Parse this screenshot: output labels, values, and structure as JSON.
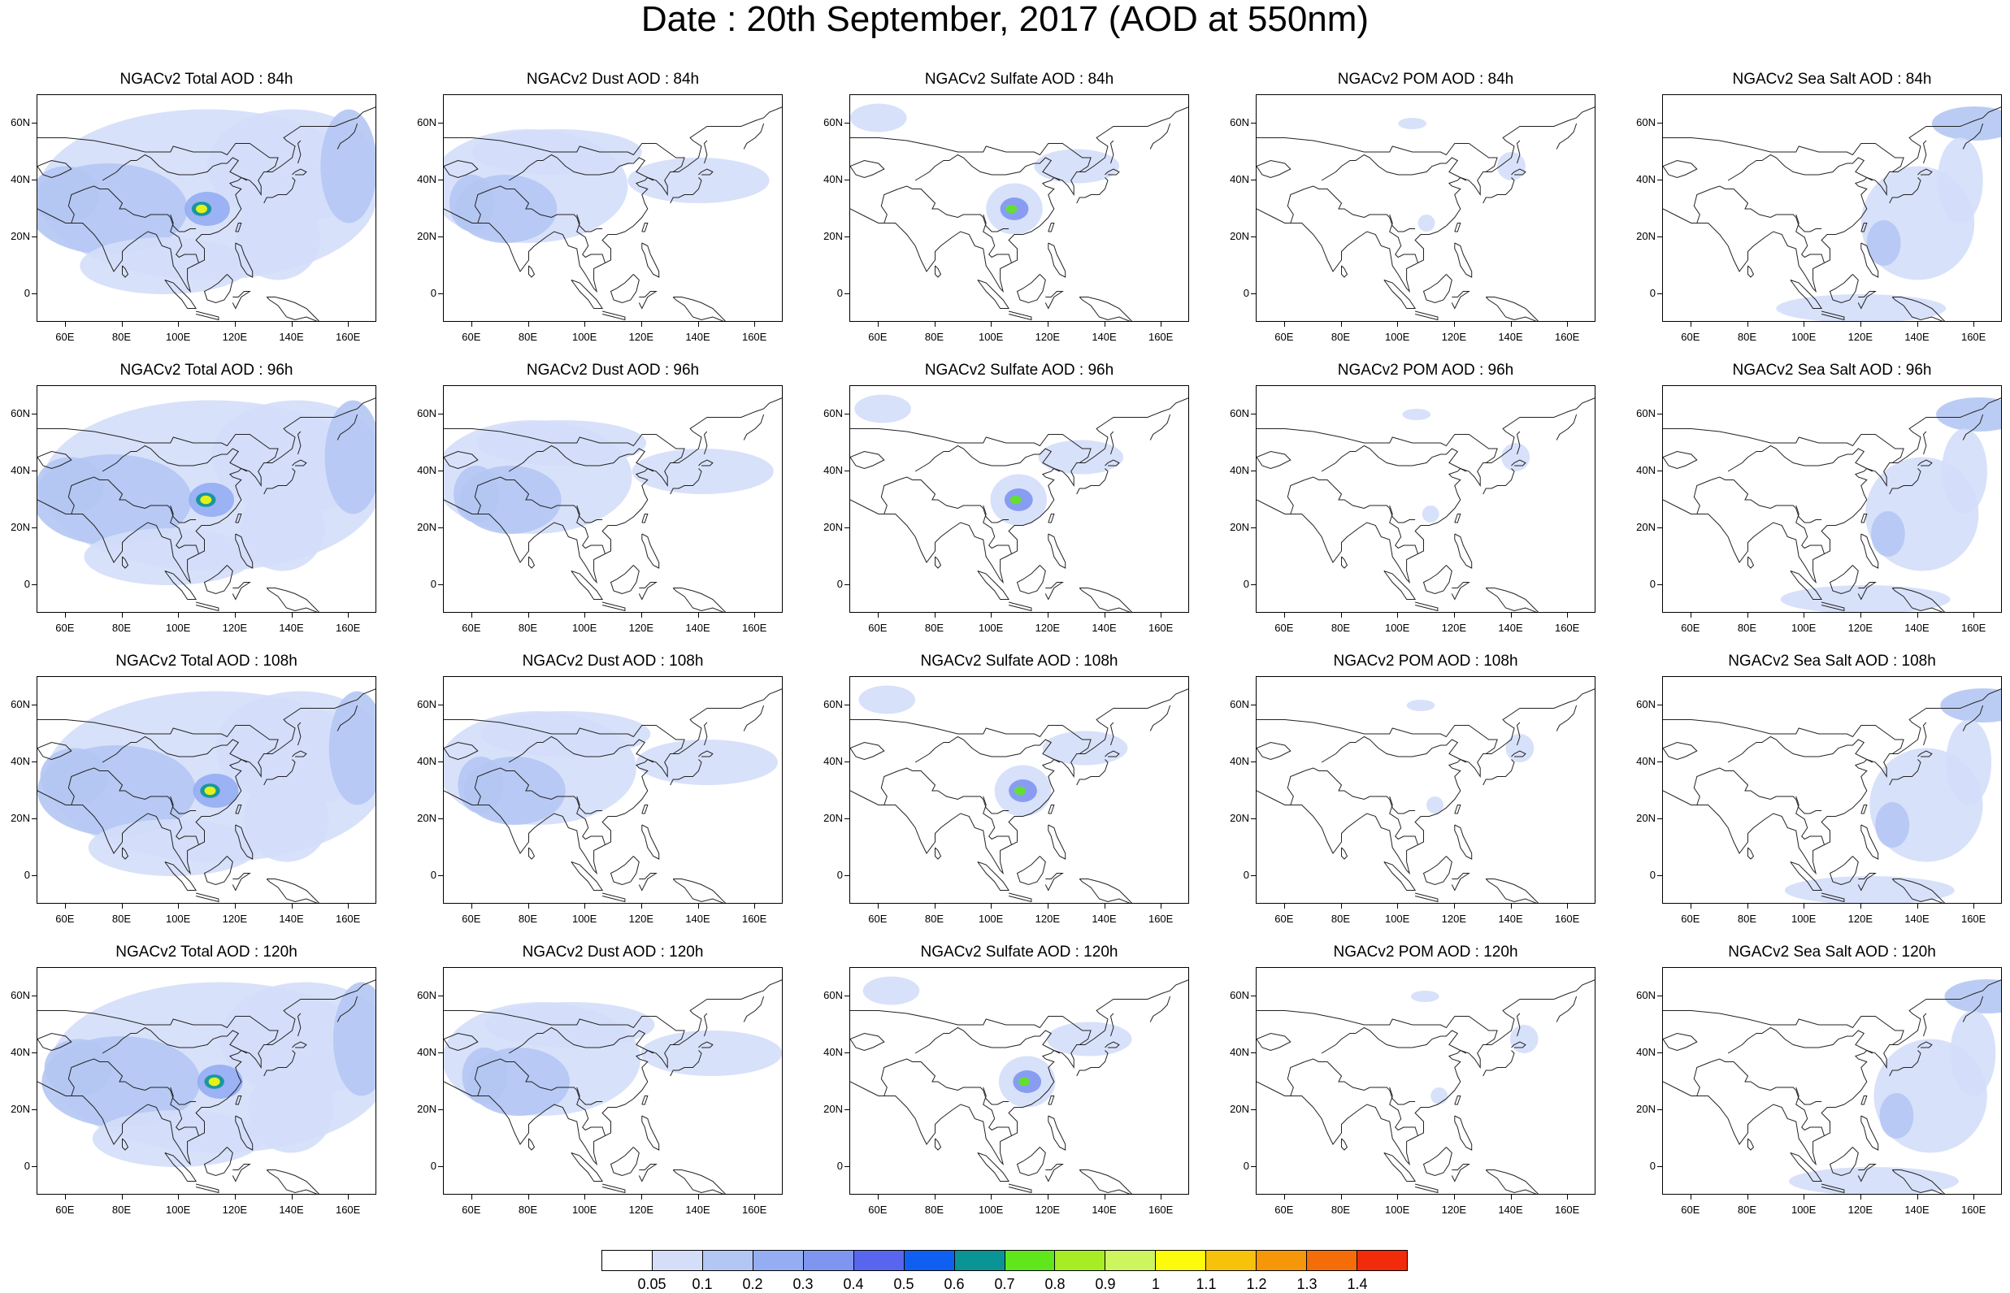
{
  "title": "Date : 20th September, 2017 (AOD at 550nm)",
  "rows": [
    {
      "panels": [
        {
          "title": "NGACv2 Total AOD : 84h",
          "species": "total"
        },
        {
          "title": "NGACv2 Dust AOD : 84h",
          "species": "dust"
        },
        {
          "title": "NGACv2 Sulfate AOD : 84h",
          "species": "sulfate"
        },
        {
          "title": "NGACv2 POM AOD : 84h",
          "species": "pom"
        },
        {
          "title": "NGACv2 Sea Salt AOD : 84h",
          "species": "seasalt"
        }
      ]
    },
    {
      "panels": [
        {
          "title": "NGACv2 Total AOD : 96h",
          "species": "total"
        },
        {
          "title": "NGACv2 Dust AOD : 96h",
          "species": "dust"
        },
        {
          "title": "NGACv2 Sulfate AOD : 96h",
          "species": "sulfate"
        },
        {
          "title": "NGACv2 POM AOD : 96h",
          "species": "pom"
        },
        {
          "title": "NGACv2 Sea Salt AOD : 96h",
          "species": "seasalt"
        }
      ]
    },
    {
      "panels": [
        {
          "title": "NGACv2 Total AOD : 108h",
          "species": "total"
        },
        {
          "title": "NGACv2 Dust AOD : 108h",
          "species": "dust"
        },
        {
          "title": "NGACv2 Sulfate AOD : 108h",
          "species": "sulfate"
        },
        {
          "title": "NGACv2 POM AOD : 108h",
          "species": "pom"
        },
        {
          "title": "NGACv2 Sea Salt AOD : 108h",
          "species": "seasalt"
        }
      ]
    },
    {
      "panels": [
        {
          "title": "NGACv2 Total AOD : 120h",
          "species": "total"
        },
        {
          "title": "NGACv2 Dust AOD : 120h",
          "species": "dust"
        },
        {
          "title": "NGACv2 Sulfate AOD : 120h",
          "species": "sulfate"
        },
        {
          "title": "NGACv2 POM AOD : 120h",
          "species": "pom"
        },
        {
          "title": "NGACv2 Sea Salt  AOD : 120h",
          "species": "seasalt"
        }
      ]
    }
  ],
  "lat_labels": [
    "60N",
    "40N",
    "20N",
    "0"
  ],
  "lon_labels": [
    "60E",
    "80E",
    "100E",
    "120E",
    "140E",
    "160E"
  ],
  "colorbar": {
    "labels": [
      "0.05",
      "0.1",
      "0.2",
      "0.3",
      "0.4",
      "0.5",
      "0.6",
      "0.7",
      "0.8",
      "0.9",
      "1",
      "1.1",
      "1.2",
      "1.3",
      "1.4"
    ],
    "colors": [
      "#ffffff",
      "#d4def9",
      "#b4c6f3",
      "#95adf3",
      "#7f96f1",
      "#5866ef",
      "#0f5ff0",
      "#0b9496",
      "#5fe71b",
      "#a6ed24",
      "#cdf55e",
      "#fbfb0b",
      "#f7c20a",
      "#f59708",
      "#f56d08",
      "#f22b0a"
    ]
  }
}
